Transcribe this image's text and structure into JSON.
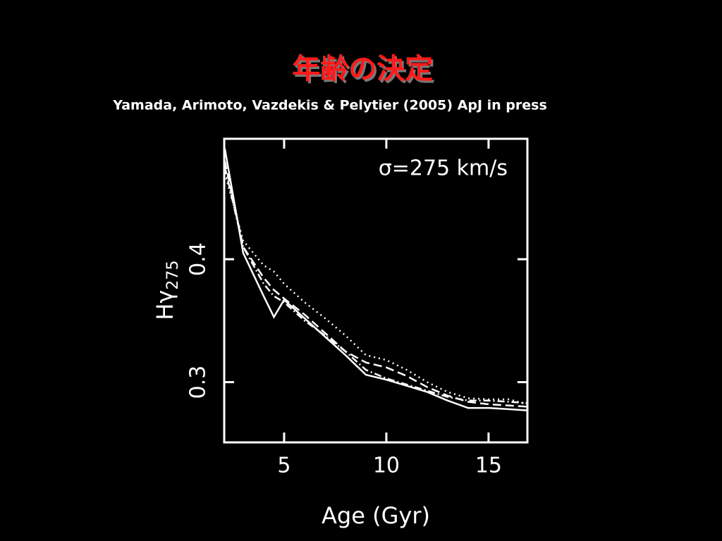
{
  "title": "年齢の決定",
  "subtitle": "Yamada, Arimoto, Vazdekis & Pelytier (2005) ApJ in press",
  "chart_data": {
    "type": "line",
    "annotation": "σ=275 km/s",
    "xlabel": "Age (Gyr)",
    "ylabel": {
      "text": "Hγ",
      "subscript": "275"
    },
    "x": [
      2.1,
      3,
      4,
      4.5,
      5,
      6,
      7,
      8,
      9,
      10,
      11,
      12,
      13,
      14,
      15,
      16,
      16.9
    ],
    "series": [
      {
        "color": "#ffffff",
        "dash": "solid",
        "values": [
          0.49,
          0.405,
          0.37,
          0.353,
          0.367,
          0.352,
          0.337,
          0.322,
          0.306,
          0.302,
          0.297,
          0.292,
          0.285,
          0.279,
          0.279,
          0.278,
          0.277
        ]
      },
      {
        "color": "#ffffff",
        "dash": "dashed",
        "values": [
          0.48,
          0.41,
          0.385,
          0.375,
          0.368,
          0.355,
          0.34,
          0.325,
          0.316,
          0.312,
          0.305,
          0.296,
          0.289,
          0.284,
          0.282,
          0.281,
          0.28
        ]
      },
      {
        "color": "#ffffff",
        "dash": "dashdot",
        "values": [
          0.475,
          0.41,
          0.38,
          0.37,
          0.365,
          0.35,
          0.338,
          0.325,
          0.31,
          0.303,
          0.298,
          0.293,
          0.288,
          0.285,
          0.285,
          0.284,
          0.283
        ]
      },
      {
        "color": "#ffffff",
        "dash": "dotted",
        "values": [
          0.47,
          0.415,
          0.395,
          0.39,
          0.38,
          0.365,
          0.352,
          0.338,
          0.322,
          0.318,
          0.31,
          0.3,
          0.292,
          0.287,
          0.286,
          0.286,
          0.282
        ]
      }
    ],
    "xlim": [
      2.07,
      16.9
    ],
    "ylim": [
      0.251,
      0.498
    ],
    "xticks": [
      5,
      10,
      15
    ],
    "yticks": [
      0.3,
      0.4
    ]
  }
}
